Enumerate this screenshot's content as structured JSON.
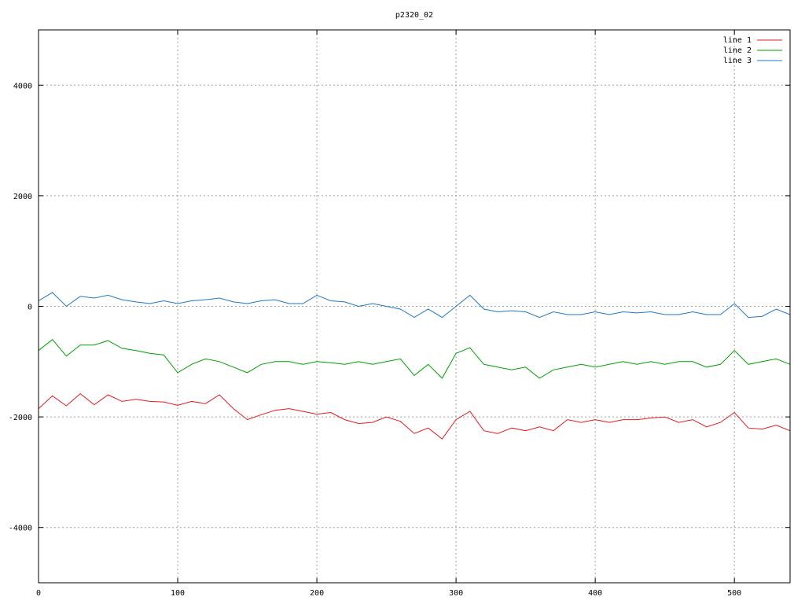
{
  "chart_data": {
    "type": "line",
    "title": "p2320_02",
    "xlabel": "",
    "ylabel": "",
    "xlim": [
      0,
      540
    ],
    "ylim": [
      -5000,
      5000
    ],
    "x_ticks": [
      0,
      100,
      200,
      300,
      400,
      500
    ],
    "y_ticks": [
      -4000,
      -2000,
      0,
      2000,
      4000
    ],
    "y_tick_labels": [
      "-4000",
      "-2000",
      "0",
      "2000",
      "4000"
    ],
    "grid": true,
    "legend_position": "top-right",
    "x": [
      0,
      10,
      20,
      30,
      40,
      50,
      60,
      70,
      80,
      90,
      100,
      110,
      120,
      130,
      140,
      150,
      160,
      170,
      180,
      190,
      200,
      210,
      220,
      230,
      240,
      250,
      260,
      270,
      280,
      290,
      300,
      310,
      320,
      330,
      340,
      350,
      360,
      370,
      380,
      390,
      400,
      410,
      420,
      430,
      440,
      450,
      460,
      470,
      480,
      490,
      500,
      510,
      520,
      530,
      540
    ],
    "series": [
      {
        "name": "line 1",
        "color": "#e41a1c",
        "values": [
          -1850,
          -1620,
          -1800,
          -1580,
          -1780,
          -1600,
          -1720,
          -1680,
          -1720,
          -1730,
          -1790,
          -1720,
          -1760,
          -1600,
          -1850,
          -2050,
          -1960,
          -1880,
          -1850,
          -1900,
          -1950,
          -1920,
          -2050,
          -2120,
          -2100,
          -2000,
          -2080,
          -2300,
          -2200,
          -2400,
          -2050,
          -1900,
          -2250,
          -2300,
          -2200,
          -2250,
          -2180,
          -2250,
          -2050,
          -2100,
          -2050,
          -2100,
          -2050,
          -2050,
          -2020,
          -2000,
          -2100,
          -2050,
          -2180,
          -2100,
          -1920,
          -2200,
          -2220,
          -2150,
          -2250
        ]
      },
      {
        "name": "line 2",
        "color": "#00a000",
        "values": [
          -800,
          -600,
          -900,
          -700,
          -700,
          -620,
          -760,
          -800,
          -850,
          -880,
          -1200,
          -1050,
          -950,
          -1000,
          -1100,
          -1200,
          -1050,
          -1000,
          -1000,
          -1050,
          -1000,
          -1020,
          -1050,
          -1000,
          -1050,
          -1000,
          -950,
          -1250,
          -1050,
          -1300,
          -850,
          -750,
          -1050,
          -1100,
          -1150,
          -1100,
          -1300,
          -1150,
          -1100,
          -1050,
          -1100,
          -1050,
          -1000,
          -1050,
          -1000,
          -1050,
          -1000,
          -1000,
          -1100,
          -1050,
          -800,
          -1050,
          -1000,
          -950,
          -1050
        ]
      },
      {
        "name": "line 3",
        "color": "#1f78c8",
        "values": [
          100,
          250,
          0,
          180,
          150,
          200,
          120,
          80,
          50,
          100,
          50,
          100,
          120,
          150,
          80,
          50,
          100,
          120,
          50,
          50,
          200,
          100,
          80,
          0,
          50,
          0,
          -50,
          -200,
          -50,
          -200,
          0,
          200,
          -50,
          -100,
          -80,
          -100,
          -200,
          -100,
          -150,
          -150,
          -100,
          -150,
          -100,
          -120,
          -100,
          -150,
          -150,
          -100,
          -150,
          -150,
          50,
          -200,
          -180,
          -50,
          -150
        ]
      }
    ]
  }
}
